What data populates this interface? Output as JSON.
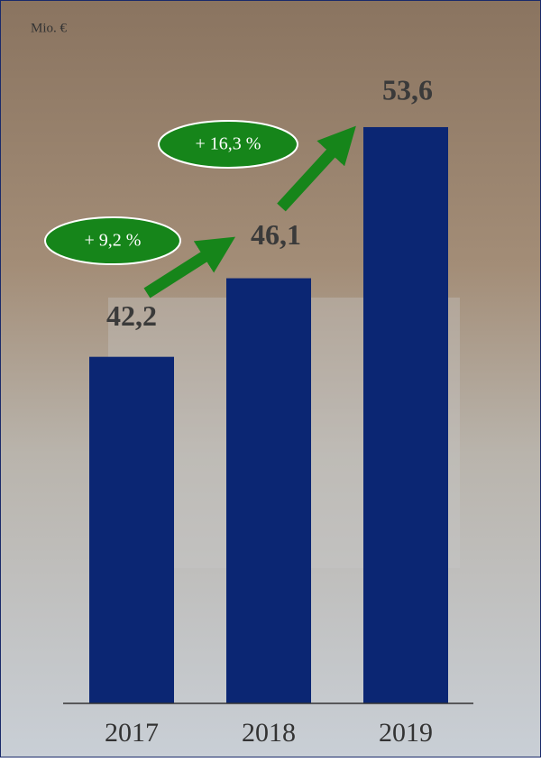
{
  "chart_data": {
    "type": "bar",
    "unit": "Mio. €",
    "categories": [
      "2017",
      "2018",
      "2019"
    ],
    "values": [
      42.2,
      46.1,
      53.6
    ],
    "value_labels": [
      "42,2",
      "46,1",
      "53,6"
    ],
    "color": "#0b2673",
    "ylim": [
      25,
      57
    ],
    "annotations": [
      "+ 9,2 %",
      "+ 16,3 %"
    ]
  }
}
